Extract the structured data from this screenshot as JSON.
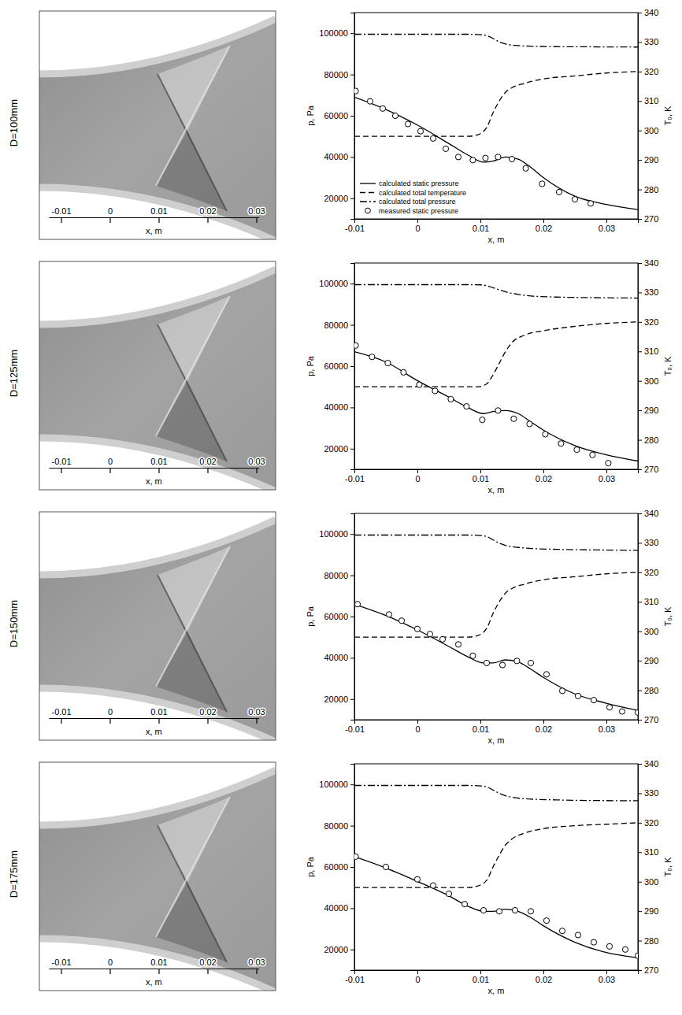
{
  "chart_data": [
    {
      "type": "image",
      "title": "D=100mm",
      "xlabel": "x, m",
      "xlim": [
        -0.0125,
        0.0305
      ],
      "xticks": [
        -0.01,
        0,
        0.01,
        0.02,
        0.03
      ]
    },
    {
      "type": "line",
      "xlabel": "x, m",
      "ylabel": "p, Pa",
      "y2label": "T₀, K",
      "xlim": [
        -0.01,
        0.035
      ],
      "xticks": [
        -0.01,
        0,
        0.01,
        0.02,
        0.03
      ],
      "ylim": [
        10000,
        110000
      ],
      "yticks": [
        20000,
        40000,
        60000,
        80000,
        100000
      ],
      "y2lim": [
        270,
        340
      ],
      "y2ticks": [
        270,
        280,
        290,
        300,
        310,
        320,
        330,
        340
      ],
      "legend": "lower left",
      "series": [
        {
          "name": "calculated static pressure",
          "type": "line",
          "line_style": "solid",
          "color": "#000000",
          "x": [
            -0.01,
            -0.005,
            0,
            0.005,
            0.008,
            0.0105,
            0.012,
            0.014,
            0.016,
            0.018,
            0.02,
            0.025,
            0.03,
            0.035
          ],
          "values": [
            69000,
            63000,
            55500,
            46500,
            41000,
            37500,
            38000,
            40000,
            39000,
            35000,
            30000,
            21000,
            17000,
            14500
          ]
        },
        {
          "name": "calculated total temperature",
          "type": "line",
          "line_style": "dashed",
          "color": "#000000",
          "axis": "y2",
          "x": [
            -0.01,
            0,
            0.008,
            0.0095,
            0.011,
            0.012,
            0.013,
            0.014,
            0.015,
            0.017,
            0.02,
            0.025,
            0.03,
            0.035
          ],
          "values": [
            298,
            298,
            298,
            298.5,
            301,
            306,
            310,
            313,
            314.5,
            316,
            317.5,
            318.5,
            319.5,
            320
          ]
        },
        {
          "name": "calculated total pressure",
          "type": "line",
          "line_style": "dashdot",
          "color": "#000000",
          "x": [
            -0.01,
            0,
            0.008,
            0.01,
            0.011,
            0.012,
            0.013,
            0.014,
            0.016,
            0.018,
            0.022,
            0.028,
            0.035
          ],
          "values": [
            99500,
            99500,
            99500,
            99300,
            98800,
            97500,
            95800,
            94800,
            94000,
            93700,
            93500,
            93400,
            93300
          ]
        },
        {
          "name": "measured static pressure",
          "type": "scatter",
          "marker": "circle",
          "color": "#000000",
          "x": [
            -0.0098,
            -0.0075,
            -0.0055,
            -0.0035,
            -0.0015,
            0.0005,
            0.0025,
            0.0045,
            0.0065,
            0.0088,
            0.0108,
            0.0128,
            0.015,
            0.0172,
            0.0198,
            0.0225,
            0.025,
            0.0275
          ],
          "values": [
            72000,
            67000,
            63500,
            60000,
            56000,
            52500,
            49000,
            44000,
            40000,
            38500,
            39500,
            40000,
            39000,
            34500,
            27000,
            23000,
            19500,
            17500
          ]
        }
      ]
    },
    {
      "type": "image",
      "title": "D=125mm",
      "xlabel": "x, m",
      "xlim": [
        -0.0125,
        0.0305
      ],
      "xticks": [
        -0.01,
        0,
        0.01,
        0.02,
        0.03
      ]
    },
    {
      "type": "line",
      "xlabel": "x, m",
      "ylabel": "p, Pa",
      "y2label": "T₀, K",
      "xlim": [
        -0.01,
        0.035
      ],
      "xticks": [
        -0.01,
        0,
        0.01,
        0.02,
        0.03
      ],
      "ylim": [
        10000,
        110000
      ],
      "yticks": [
        20000,
        40000,
        60000,
        80000,
        100000
      ],
      "y2lim": [
        270,
        340
      ],
      "y2ticks": [
        270,
        280,
        290,
        300,
        310,
        320,
        330,
        340
      ],
      "series": [
        {
          "type": "line",
          "line_style": "solid",
          "color": "#000000",
          "x": [
            -0.01,
            -0.005,
            0,
            0.005,
            0.008,
            0.0105,
            0.012,
            0.014,
            0.016,
            0.018,
            0.02,
            0.025,
            0.03,
            0.035
          ],
          "values": [
            67000,
            62000,
            53000,
            45000,
            40000,
            37000,
            38000,
            38500,
            37000,
            33000,
            29000,
            21500,
            17000,
            14000
          ]
        },
        {
          "type": "line",
          "line_style": "dashed",
          "color": "#000000",
          "axis": "y2",
          "x": [
            -0.01,
            0,
            0.008,
            0.0095,
            0.011,
            0.012,
            0.013,
            0.014,
            0.015,
            0.017,
            0.02,
            0.025,
            0.03,
            0.035
          ],
          "values": [
            298,
            298,
            298,
            298,
            299,
            302,
            306,
            310,
            313,
            315.5,
            317,
            318.5,
            319.5,
            320
          ]
        },
        {
          "type": "line",
          "line_style": "dashdot",
          "color": "#000000",
          "x": [
            -0.01,
            0,
            0.008,
            0.01,
            0.011,
            0.012,
            0.013,
            0.014,
            0.016,
            0.018,
            0.022,
            0.028,
            0.035
          ],
          "values": [
            99500,
            99500,
            99500,
            99400,
            99000,
            98000,
            97000,
            96000,
            94800,
            94000,
            93500,
            93200,
            93000
          ]
        },
        {
          "type": "scatter",
          "marker": "circle",
          "color": "#000000",
          "x": [
            -0.0098,
            -0.0072,
            -0.0047,
            -0.0022,
            0.0003,
            0.0028,
            0.0053,
            0.0078,
            0.0103,
            0.0128,
            0.0153,
            0.0178,
            0.0203,
            0.0228,
            0.0253,
            0.0278,
            0.0303
          ],
          "values": [
            70000,
            64500,
            61500,
            57000,
            51000,
            48000,
            44000,
            40500,
            34000,
            38500,
            34500,
            32000,
            27000,
            22500,
            19500,
            17000,
            13000
          ]
        }
      ]
    },
    {
      "type": "image",
      "title": "D=150mm",
      "xlabel": "x, m",
      "xlim": [
        -0.0125,
        0.0305
      ],
      "xticks": [
        -0.01,
        0,
        0.01,
        0.02,
        0.03
      ]
    },
    {
      "type": "line",
      "xlabel": "x, m",
      "ylabel": "p, Pa",
      "y2label": "T₀, K",
      "xlim": [
        -0.01,
        0.035
      ],
      "xticks": [
        -0.01,
        0,
        0.01,
        0.02,
        0.03
      ],
      "ylim": [
        10000,
        110000
      ],
      "yticks": [
        20000,
        40000,
        60000,
        80000,
        100000
      ],
      "y2lim": [
        270,
        340
      ],
      "y2ticks": [
        270,
        280,
        290,
        300,
        310,
        320,
        330,
        340
      ],
      "series": [
        {
          "type": "line",
          "line_style": "solid",
          "color": "#000000",
          "x": [
            -0.01,
            -0.005,
            0,
            0.005,
            0.008,
            0.0105,
            0.012,
            0.014,
            0.016,
            0.018,
            0.02,
            0.025,
            0.03,
            0.035
          ],
          "values": [
            66000,
            60500,
            53500,
            45500,
            40500,
            37500,
            37500,
            39000,
            38000,
            34500,
            30500,
            22500,
            18000,
            14500
          ]
        },
        {
          "type": "line",
          "line_style": "dashed",
          "color": "#000000",
          "axis": "y2",
          "x": [
            -0.01,
            0,
            0.008,
            0.0095,
            0.011,
            0.012,
            0.013,
            0.014,
            0.015,
            0.017,
            0.02,
            0.025,
            0.03,
            0.035
          ],
          "values": [
            298,
            298,
            298,
            298.5,
            301,
            306,
            310,
            313,
            314.5,
            316,
            317.5,
            318.5,
            319.5,
            320
          ]
        },
        {
          "type": "line",
          "line_style": "dashdot",
          "color": "#000000",
          "x": [
            -0.01,
            0,
            0.008,
            0.01,
            0.011,
            0.012,
            0.013,
            0.014,
            0.016,
            0.018,
            0.022,
            0.028,
            0.035
          ],
          "values": [
            99500,
            99500,
            99500,
            99300,
            98800,
            97200,
            95600,
            94500,
            93500,
            93000,
            92600,
            92300,
            92100
          ]
        },
        {
          "type": "scatter",
          "marker": "circle",
          "color": "#000000",
          "x": [
            -0.0095,
            -0.0045,
            -0.0025,
            0,
            0.002,
            0.004,
            0.0065,
            0.0088,
            0.011,
            0.0135,
            0.0158,
            0.018,
            0.0205,
            0.023,
            0.0255,
            0.028,
            0.0305,
            0.0325,
            0.035
          ],
          "values": [
            66000,
            61000,
            58000,
            54000,
            51500,
            49000,
            46500,
            41000,
            37500,
            36500,
            38500,
            37500,
            32000,
            24000,
            21500,
            19500,
            16000,
            14000,
            13500
          ]
        }
      ]
    },
    {
      "type": "image",
      "title": "D=175mm",
      "xlabel": "x, m",
      "xlim": [
        -0.0125,
        0.0305
      ],
      "xticks": [
        -0.01,
        0,
        0.01,
        0.02,
        0.03
      ]
    },
    {
      "type": "line",
      "xlabel": "x, m",
      "ylabel": "p, Pa",
      "y2label": "T₀, K",
      "xlim": [
        -0.01,
        0.035
      ],
      "xticks": [
        -0.01,
        0,
        0.01,
        0.02,
        0.03
      ],
      "ylim": [
        10000,
        110000
      ],
      "yticks": [
        20000,
        40000,
        60000,
        80000,
        100000
      ],
      "y2lim": [
        270,
        340
      ],
      "y2ticks": [
        270,
        280,
        290,
        300,
        310,
        320,
        330,
        340
      ],
      "series": [
        {
          "type": "line",
          "line_style": "solid",
          "color": "#000000",
          "x": [
            -0.01,
            -0.005,
            0,
            0.005,
            0.008,
            0.0105,
            0.012,
            0.014,
            0.016,
            0.018,
            0.02,
            0.025,
            0.03,
            0.035
          ],
          "values": [
            65000,
            59500,
            53000,
            46000,
            41000,
            38500,
            38500,
            39500,
            38500,
            35500,
            31500,
            23500,
            18500,
            16000
          ]
        },
        {
          "type": "line",
          "line_style": "dashed",
          "color": "#000000",
          "axis": "y2",
          "x": [
            -0.01,
            0,
            0.008,
            0.0095,
            0.011,
            0.012,
            0.013,
            0.014,
            0.015,
            0.017,
            0.02,
            0.025,
            0.03,
            0.035
          ],
          "values": [
            298,
            298,
            298,
            298.5,
            300.5,
            305,
            309,
            312.5,
            314.5,
            316.5,
            318,
            319,
            319.5,
            320
          ]
        },
        {
          "type": "line",
          "line_style": "dashdot",
          "color": "#000000",
          "x": [
            -0.01,
            0,
            0.008,
            0.01,
            0.011,
            0.012,
            0.013,
            0.014,
            0.016,
            0.018,
            0.022,
            0.028,
            0.035
          ],
          "values": [
            99500,
            99500,
            99500,
            99300,
            98800,
            97300,
            95700,
            94500,
            93400,
            92900,
            92500,
            92200,
            92100
          ]
        },
        {
          "type": "scatter",
          "marker": "circle",
          "color": "#000000",
          "x": [
            -0.0098,
            -0.005,
            0,
            0.0025,
            0.005,
            0.0075,
            0.0105,
            0.013,
            0.0155,
            0.018,
            0.0205,
            0.023,
            0.0255,
            0.028,
            0.0305,
            0.033,
            0.035
          ],
          "values": [
            65000,
            60000,
            54000,
            51000,
            47000,
            42000,
            39000,
            38500,
            39000,
            38500,
            34000,
            29000,
            27000,
            23500,
            21500,
            20000,
            17000
          ]
        }
      ]
    }
  ]
}
